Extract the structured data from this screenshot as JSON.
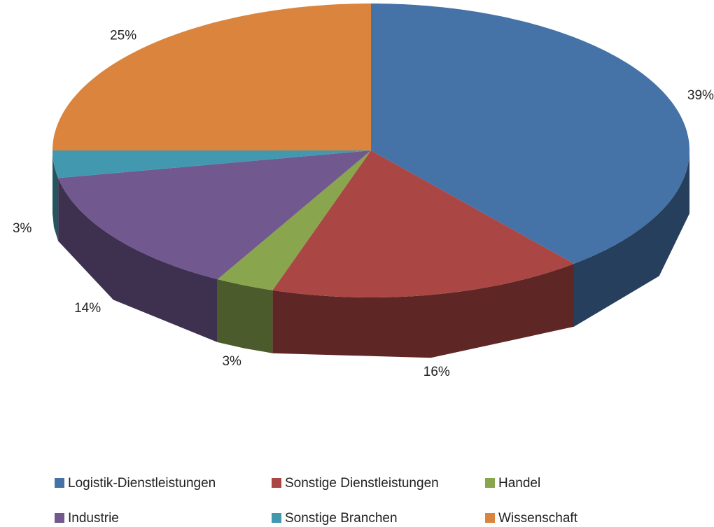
{
  "chart_data": {
    "type": "pie",
    "categories": [
      "Logistik-Dienstleistungen",
      "Sonstige Dienstleistungen",
      "Handel",
      "Industrie",
      "Sonstige Branchen",
      "Wissenschaft"
    ],
    "values": [
      39,
      16,
      3,
      14,
      3,
      25
    ],
    "value_labels": [
      "39%",
      "16%",
      "3%",
      "14%",
      "3%",
      "25%"
    ],
    "colors": [
      "#4572a7",
      "#aa4643",
      "#89a54e",
      "#71588f",
      "#4198af",
      "#db843d"
    ],
    "legend": "bottom"
  }
}
